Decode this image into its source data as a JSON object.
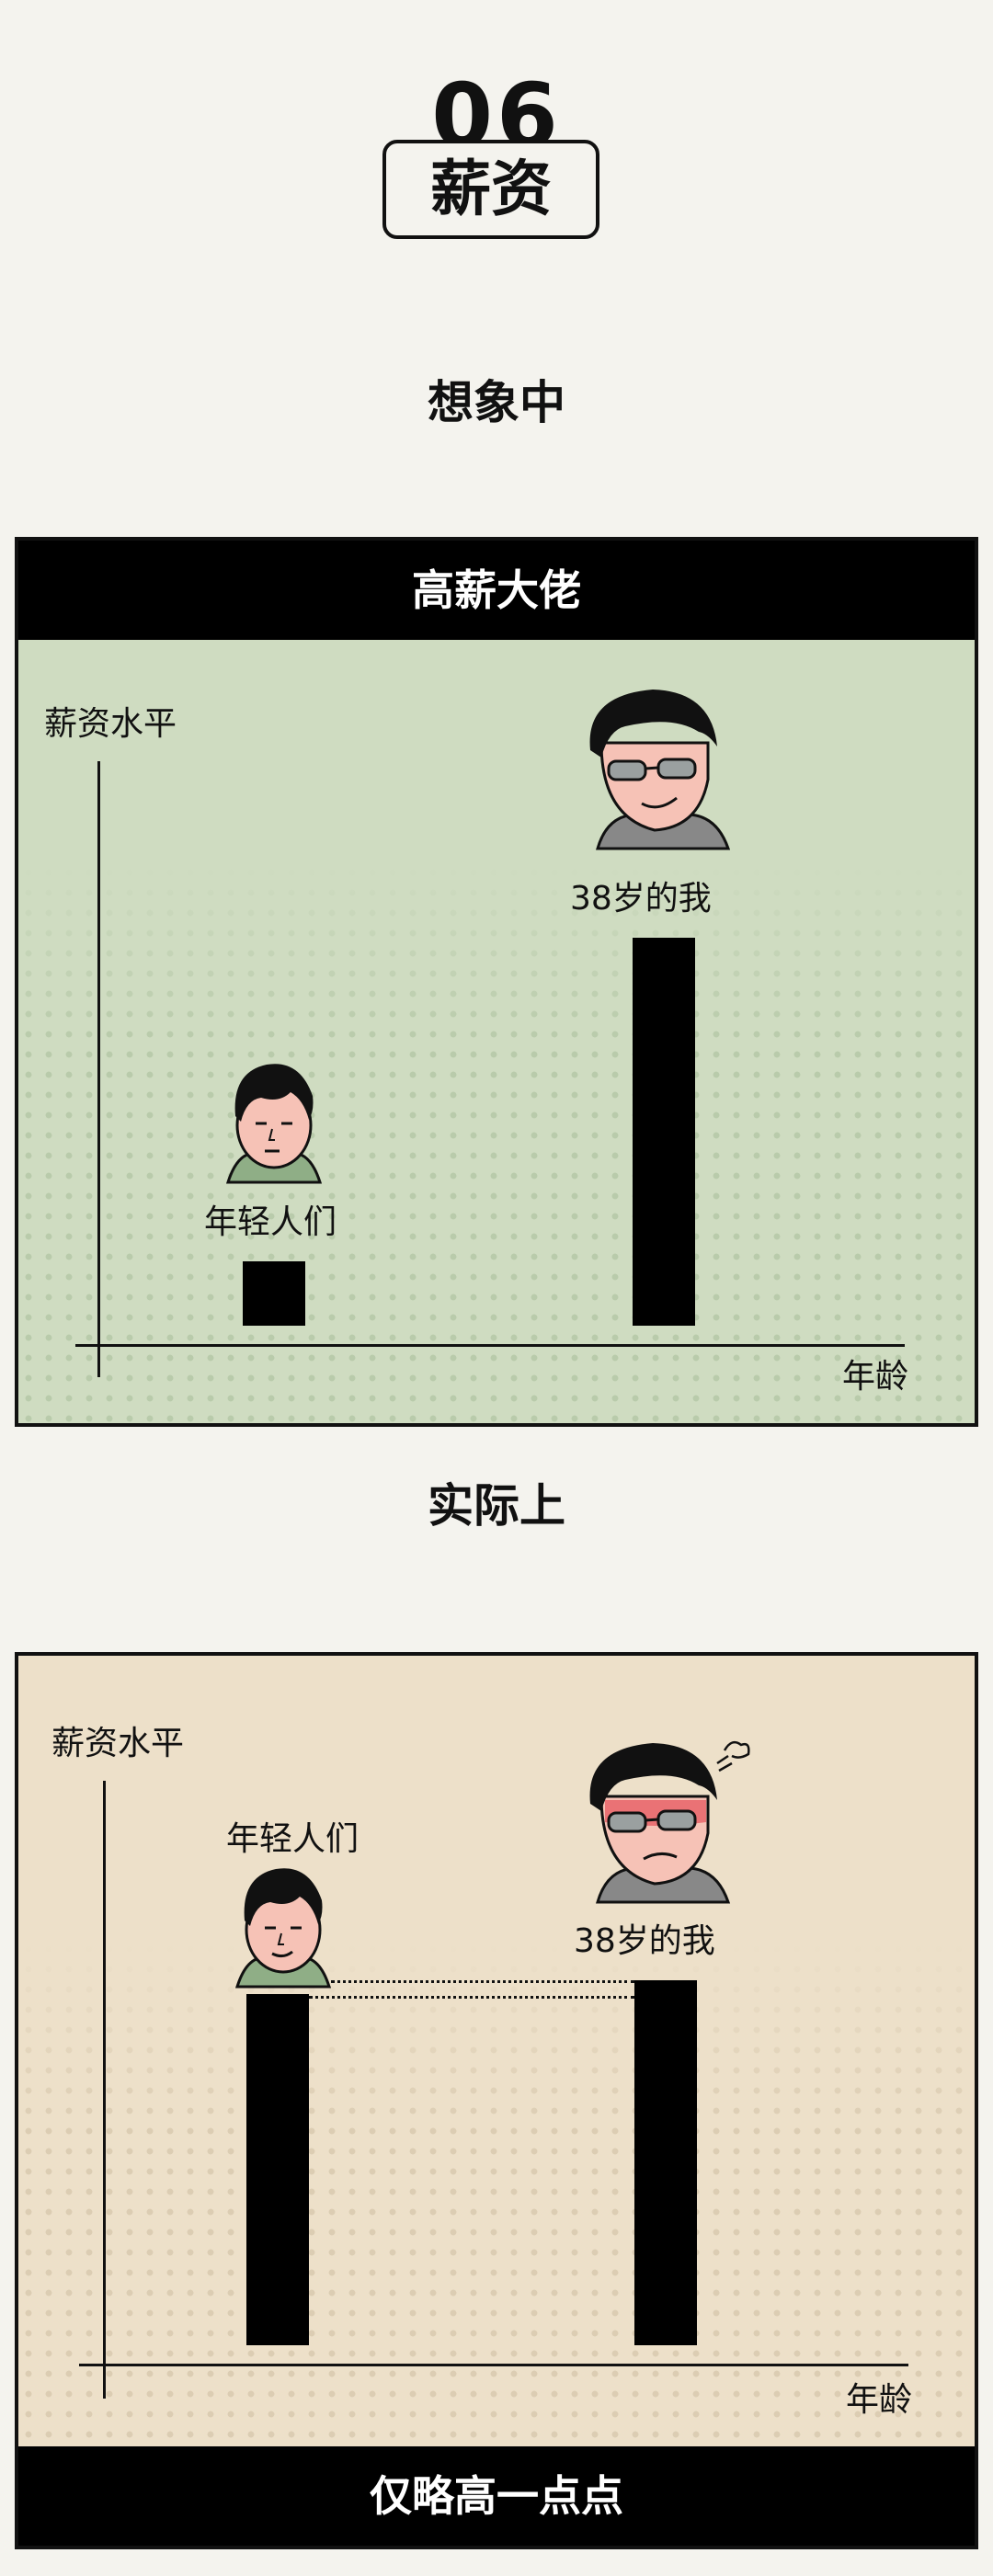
{
  "header": {
    "number": "06",
    "title": "薪资"
  },
  "sections": [
    {
      "heading": "想象中",
      "banner": "高薪大佬"
    },
    {
      "heading": "实际上",
      "banner": "仅略高一点点"
    }
  ],
  "chart_data": [
    {
      "type": "bar",
      "title": "高薪大佬",
      "ylabel": "薪资水平",
      "xlabel": "年龄",
      "categories": [
        "年轻人们",
        "38岁的我"
      ],
      "values": [
        1,
        6
      ],
      "ylim": [
        0,
        6.5
      ],
      "colors": {
        "bar": "#000000",
        "background": "#cfdcc1"
      }
    },
    {
      "type": "bar",
      "title": "仅略高一点点",
      "ylabel": "薪资水平",
      "xlabel": "年龄",
      "categories": [
        "年轻人们",
        "38岁的我"
      ],
      "values": [
        5.2,
        5.4
      ],
      "ylim": [
        0,
        6.5
      ],
      "colors": {
        "bar": "#000000",
        "background": "#ede0c9"
      }
    }
  ]
}
